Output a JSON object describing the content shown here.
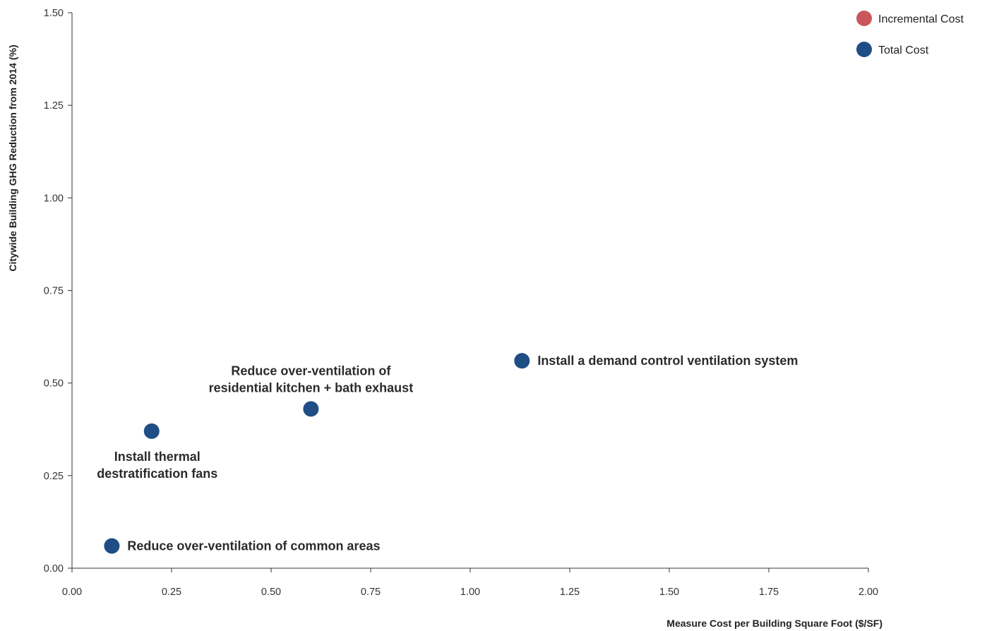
{
  "chart_data": {
    "type": "scatter",
    "xlabel": "Measure Cost per Building Square Foot ($/SF)",
    "ylabel": "Citywide Building GHG Reduction from 2014 (%)",
    "xlim": [
      0,
      2
    ],
    "ylim": [
      0,
      1.5
    ],
    "x_ticks": [
      "0.00",
      "0.25",
      "0.50",
      "0.75",
      "1.00",
      "1.25",
      "1.50",
      "1.75",
      "2.00"
    ],
    "y_ticks": [
      "0.00",
      "0.25",
      "0.50",
      "0.75",
      "1.00",
      "1.25",
      "1.50"
    ],
    "grid": false,
    "legend_position": "top-right",
    "series": [
      {
        "name": "Incremental Cost",
        "color": "#c9575b",
        "points": []
      },
      {
        "name": "Total Cost",
        "color": "#1f4e86",
        "points": [
          {
            "x": 0.1,
            "y": 0.06,
            "label": [
              "Reduce over-ventilation of common areas"
            ],
            "label_pos": "right"
          },
          {
            "x": 0.2,
            "y": 0.37,
            "label": [
              "Install thermal",
              "destratification fans"
            ],
            "label_pos": "below"
          },
          {
            "x": 0.6,
            "y": 0.43,
            "label": [
              "Reduce over-ventilation of",
              "residential kitchen + bath exhaust"
            ],
            "label_pos": "above"
          },
          {
            "x": 1.13,
            "y": 0.56,
            "label": [
              "Install a demand control ventilation system"
            ],
            "label_pos": "right"
          }
        ]
      }
    ]
  }
}
